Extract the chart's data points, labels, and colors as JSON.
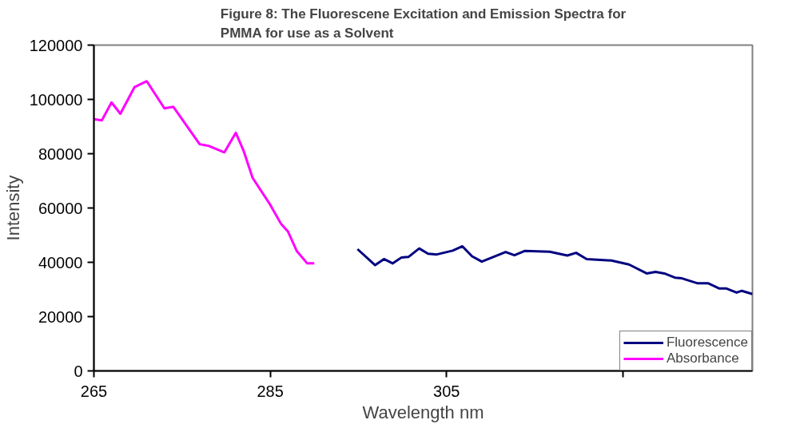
{
  "chart_data": {
    "type": "line",
    "title": "Figure 8: The Fluorescene Excitation and Emission Spectra for\nPMMA for use as a Solvent",
    "xlabel": "Wavelength nm",
    "ylabel": "Intensity",
    "xlim": [
      265,
      339.7
    ],
    "xticks": [
      265,
      285,
      305,
      {
        "value": 325,
        "label": null
      }
    ],
    "ylim": [
      0,
      120000
    ],
    "yticks": [
      0,
      20000,
      40000,
      60000,
      80000,
      100000,
      120000
    ],
    "grid": false,
    "legend": "bottom right",
    "line_style": "solid",
    "marker": "none",
    "series": [
      {
        "name": "Fluorescence",
        "color": "#000080",
        "x": [
          294.9,
          296.9,
          297.9,
          298.9,
          299.9,
          300.7,
          301.9,
          302.9,
          303.9,
          305.7,
          306.8,
          307.9,
          309.0,
          311.7,
          312.7,
          313.9,
          316.7,
          318.7,
          319.7,
          320.9,
          323.7,
          325.7,
          327.7,
          328.7,
          329.7,
          330.9,
          331.7,
          333.5,
          334.7,
          335.9,
          336.7,
          337.9,
          338.5,
          339.7
        ],
        "values": [
          44850,
          38950,
          41200,
          39600,
          41800,
          42000,
          45100,
          43150,
          42900,
          44300,
          45900,
          42200,
          40250,
          43800,
          42600,
          44200,
          43900,
          42500,
          43500,
          41200,
          40650,
          39200,
          35900,
          36450,
          35900,
          34350,
          34100,
          32250,
          32250,
          30400,
          30400,
          28850,
          29500,
          28300
        ]
      },
      {
        "name": "Absorbance",
        "color": "#ff00ff",
        "x": [
          265,
          265.9,
          267.0,
          268.0,
          269.6,
          271.0,
          273.0,
          274.0,
          277.0,
          278.0,
          279.8,
          281.1,
          282.0,
          283.0,
          285.0,
          286.2,
          287.0,
          288.0,
          289.2,
          290.0
        ],
        "values": [
          92700,
          92300,
          98900,
          94700,
          104500,
          106700,
          96700,
          97300,
          83500,
          82900,
          80500,
          87700,
          80900,
          71100,
          61200,
          54300,
          51400,
          44200,
          39600,
          39600
        ]
      }
    ]
  }
}
